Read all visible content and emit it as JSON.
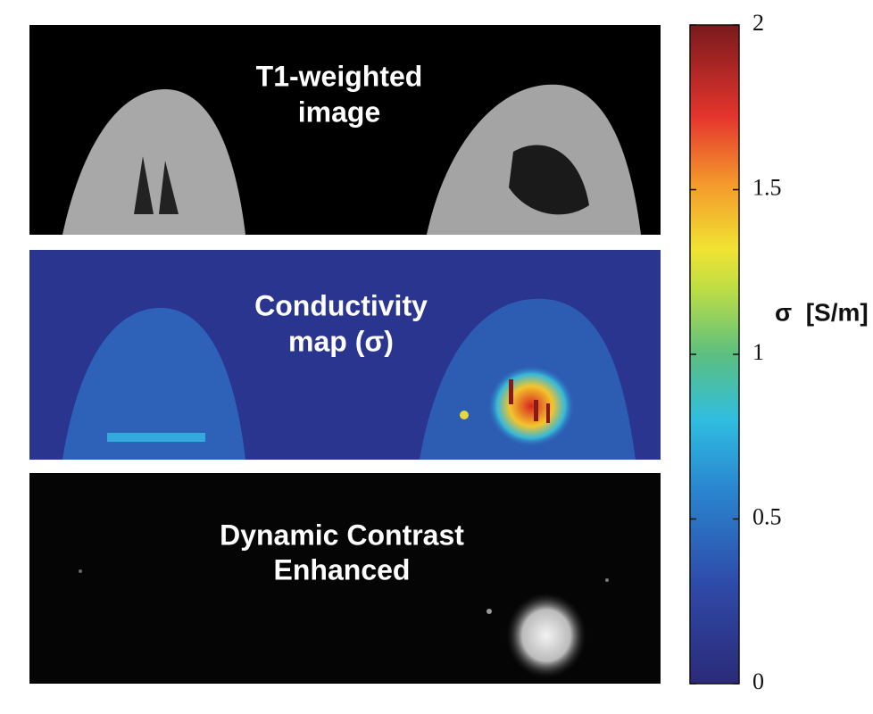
{
  "panels": [
    {
      "label_lines": [
        "T1-weighted",
        "image"
      ]
    },
    {
      "label_lines": [
        "Conductivity",
        "map (σ)"
      ]
    },
    {
      "label_lines": [
        "Dynamic Contrast",
        "Enhanced"
      ]
    }
  ],
  "colorbar": {
    "label": "σ  [S/m]",
    "lim": [
      0,
      2
    ],
    "ticks": [
      0,
      0.5,
      1,
      1.5,
      2
    ]
  }
}
